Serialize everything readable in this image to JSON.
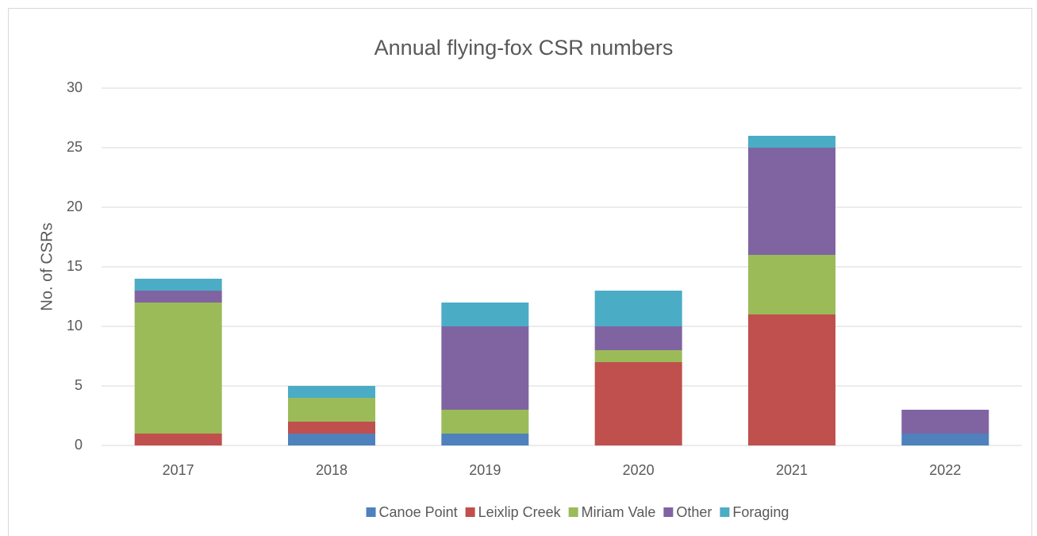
{
  "chart_data": {
    "type": "stacked_bar",
    "title": "Annual flying-fox CSR numbers",
    "y_label": "No. of CSRs",
    "categories": [
      "2017",
      "2018",
      "2019",
      "2020",
      "2021",
      "2022"
    ],
    "series": [
      {
        "name": "Canoe Point",
        "color": "#4f81bd",
        "values": [
          0,
          1,
          1,
          0,
          0,
          1
        ]
      },
      {
        "name": "Leixlip Creek",
        "color": "#c0504d",
        "values": [
          1,
          1,
          0,
          7,
          11,
          0
        ]
      },
      {
        "name": "Miriam Vale",
        "color": "#9bbb59",
        "values": [
          11,
          2,
          2,
          1,
          5,
          0
        ]
      },
      {
        "name": "Other",
        "color": "#8064a2",
        "values": [
          1,
          0,
          7,
          2,
          9,
          2
        ]
      },
      {
        "name": "Foraging",
        "color": "#4bacc6",
        "values": [
          1,
          1,
          2,
          3,
          1,
          0
        ]
      }
    ],
    "ylim": [
      0,
      30
    ],
    "yticks": [
      0,
      5,
      10,
      15,
      20,
      25,
      30
    ],
    "grid": true,
    "legend": "bottom"
  }
}
